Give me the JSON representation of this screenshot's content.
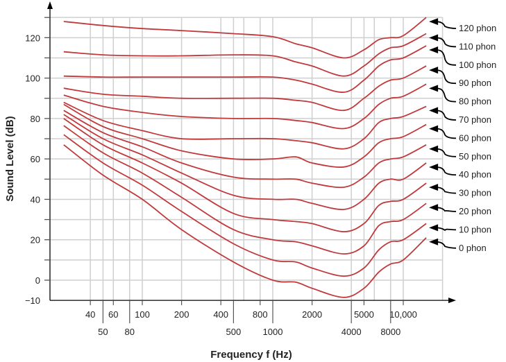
{
  "chart_data": {
    "type": "line",
    "title": "",
    "xlabel": "Frequency f (Hz)",
    "ylabel": "Sound Level (dB)",
    "x_scale": "log",
    "xlim": [
      20,
      20000
    ],
    "ylim": [
      -10,
      130
    ],
    "grid": true,
    "line_color": "#c0393b",
    "x_ticks_top": [
      {
        "value": 40,
        "label": "40"
      },
      {
        "value": 60,
        "label": "60"
      },
      {
        "value": 100,
        "label": "100"
      },
      {
        "value": 200,
        "label": "200"
      },
      {
        "value": 400,
        "label": "400"
      },
      {
        "value": 800,
        "label": "800"
      },
      {
        "value": 2000,
        "label": "2000"
      },
      {
        "value": 5000,
        "label": "5000"
      },
      {
        "value": 10000,
        "label": "10,000"
      }
    ],
    "x_ticks_bottom": [
      {
        "value": 50,
        "label": "50"
      },
      {
        "value": 80,
        "label": "80"
      },
      {
        "value": 500,
        "label": "500"
      },
      {
        "value": 1000,
        "label": "1000"
      },
      {
        "value": 4000,
        "label": "4000"
      },
      {
        "value": 8000,
        "label": "8000"
      }
    ],
    "x_gridlines": [
      40,
      50,
      60,
      80,
      100,
      200,
      400,
      500,
      600,
      800,
      1000,
      2000,
      4000,
      5000,
      6000,
      8000,
      10000,
      20000
    ],
    "y_ticks": [
      {
        "value": 120,
        "label": "120"
      },
      {
        "value": 100,
        "label": "100"
      },
      {
        "value": 80,
        "label": "80"
      },
      {
        "value": 60,
        "label": "60"
      },
      {
        "value": 40,
        "label": "40"
      },
      {
        "value": 20,
        "label": "20"
      },
      {
        "value": 0,
        "label": "0"
      },
      {
        "value": -10,
        "label": "−10"
      }
    ],
    "x": [
      25,
      50,
      100,
      200,
      500,
      1000,
      1500,
      2000,
      3500,
      5000,
      6500,
      8000,
      10000,
      15000
    ],
    "series": [
      {
        "name": "120 phon",
        "values": [
          128,
          126,
          124.5,
          123.5,
          122,
          120.5,
          117,
          115,
          110,
          114,
          119,
          120,
          121,
          130
        ]
      },
      {
        "name": "110 phon",
        "values": [
          113,
          111.5,
          111,
          111,
          111.5,
          111,
          108,
          106,
          101,
          106,
          112,
          115,
          116,
          122
        ]
      },
      {
        "name": "100 phon",
        "values": [
          101,
          100.5,
          100.5,
          100.5,
          100.5,
          100.5,
          99,
          97,
          93,
          99,
          106,
          109,
          110,
          116
        ]
      },
      {
        "name": "90 phon",
        "values": [
          95,
          92,
          91,
          90,
          90,
          90,
          89,
          88,
          84,
          90,
          96,
          99,
          100,
          106
        ]
      },
      {
        "name": "80 phon",
        "values": [
          91.6,
          86,
          83,
          81,
          80,
          80,
          79,
          78,
          75,
          80,
          87,
          90,
          91,
          97
        ]
      },
      {
        "name": "70 phon",
        "values": [
          88,
          79,
          74,
          70,
          70,
          70,
          69,
          68,
          65,
          70,
          78,
          80,
          81,
          86
        ]
      },
      {
        "name": "60 phon",
        "values": [
          87,
          76,
          70,
          64,
          60,
          60,
          61,
          58,
          56,
          61,
          68,
          70,
          71,
          77
        ]
      },
      {
        "name": "50 phon",
        "values": [
          84,
          73,
          66,
          58,
          51,
          50,
          50,
          48,
          46,
          51,
          58,
          60,
          61,
          67
        ]
      },
      {
        "name": "40 phon",
        "values": [
          82,
          70,
          62,
          53,
          42,
          40,
          40,
          38,
          35,
          40,
          48,
          50,
          50,
          58
        ]
      },
      {
        "name": "30 phon",
        "values": [
          80,
          67,
          58,
          48,
          33,
          30,
          29,
          28,
          24,
          28,
          37,
          39,
          40,
          48
        ]
      },
      {
        "name": "20 phon",
        "values": [
          76.5,
          63,
          53,
          41,
          25,
          20,
          19,
          17,
          13,
          17,
          27,
          29,
          30,
          38
        ]
      },
      {
        "name": "10 phon",
        "values": [
          72,
          58,
          47,
          34,
          18,
          10,
          9,
          6,
          2,
          6,
          15,
          19,
          20,
          28
        ]
      },
      {
        "name": "0 phon",
        "values": [
          67,
          52,
          40,
          25,
          9,
          0,
          -1,
          -4,
          -8.5,
          -4,
          4,
          8,
          10,
          21
        ]
      }
    ]
  }
}
